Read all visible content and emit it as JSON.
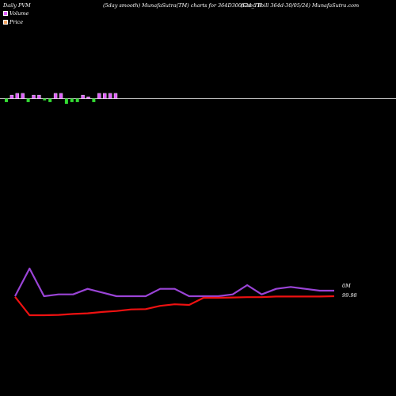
{
  "header": {
    "left": "Daily PVM",
    "center": "(5day smooth) MunafaSutra(TM) charts for 364D300524_TB",
    "right": "(Gsec Tbill 364d-30/05/24) MunafaSutra.com"
  },
  "colors": {
    "background": "#000000",
    "volume_up": "#e060ff",
    "volume_down": "#33dd33",
    "volume_line": "#9a44d6",
    "price_line": "#ee1111",
    "baseline": "#ffffff"
  },
  "chart_data": [
    {
      "type": "bar",
      "series": [
        {
          "name": "Volume",
          "direction": [
            "down",
            "up",
            "up",
            "up",
            "down",
            "up",
            "up",
            "down",
            "down",
            "up",
            "up",
            "down",
            "down",
            "down",
            "up",
            "up",
            "down",
            "up",
            "up",
            "up",
            "up"
          ],
          "values": [
            2,
            2,
            3,
            3,
            2,
            2,
            2,
            1,
            2,
            3,
            3,
            3,
            2,
            2,
            2,
            1,
            2,
            3,
            3,
            3,
            3
          ]
        }
      ]
    },
    {
      "type": "line",
      "x": [
        1,
        2,
        3,
        4,
        5,
        6,
        7,
        8,
        9,
        10,
        11,
        12,
        13,
        14,
        15,
        16,
        17,
        18,
        19,
        20,
        21,
        22,
        23
      ],
      "series": [
        {
          "name": "Volume",
          "values": [
            1.1,
            2.6,
            1.1,
            1.2,
            1.2,
            1.5,
            1.3,
            1.1,
            1.1,
            1.1,
            1.5,
            1.5,
            1.1,
            1.1,
            1.1,
            1.2,
            1.7,
            1.2,
            1.5,
            1.6,
            1.5,
            1.4,
            1.4
          ]
        },
        {
          "name": "Price",
          "values": [
            99.93,
            99.36,
            99.36,
            99.37,
            99.4,
            99.42,
            99.46,
            99.49,
            99.54,
            99.55,
            99.65,
            99.7,
            99.68,
            99.9,
            99.9,
            99.91,
            99.92,
            99.92,
            99.94,
            99.94,
            99.94,
            99.94,
            99.95
          ]
        }
      ],
      "labels": {
        "volume_last": "0M",
        "price_last": "99.98"
      }
    }
  ]
}
